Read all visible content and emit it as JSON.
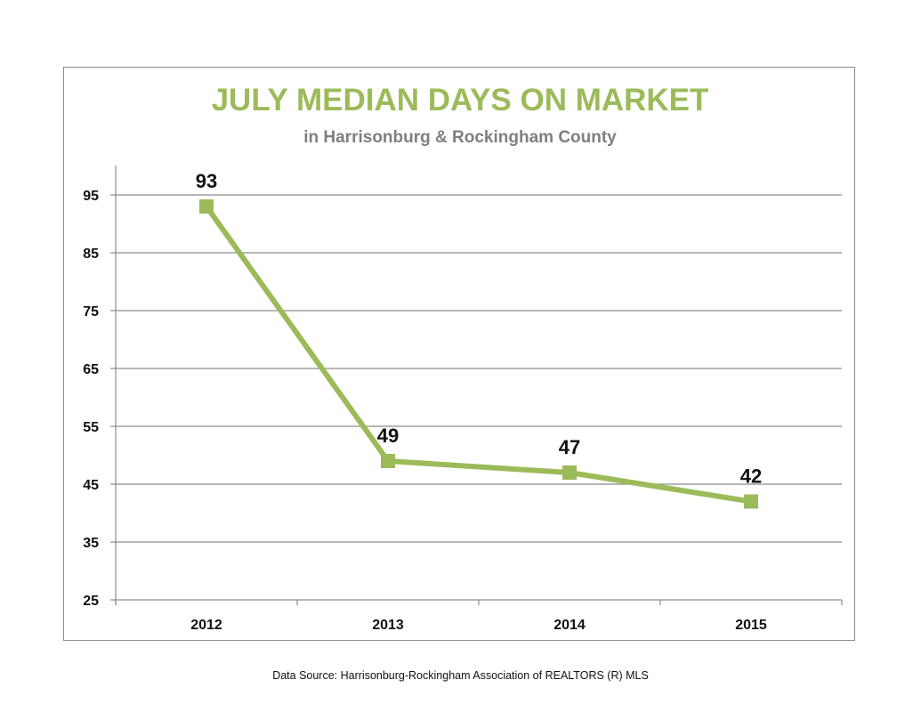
{
  "chart_data": {
    "type": "line",
    "title": "JULY MEDIAN DAYS ON MARKET",
    "subtitle": "in Harrisonburg  & Rockingham County",
    "categories": [
      "2012",
      "2013",
      "2014",
      "2015"
    ],
    "series": [
      {
        "values": [
          93,
          49,
          47,
          42
        ]
      }
    ],
    "data_labels": [
      "93",
      "49",
      "47",
      "42"
    ],
    "y_ticks": [
      25,
      35,
      45,
      55,
      65,
      75,
      85,
      95
    ],
    "ylim": [
      25,
      100
    ],
    "xlabel": "",
    "ylabel": "",
    "grid": true,
    "legend": "none",
    "colors": {
      "title": "#9bbb59",
      "line": "#9bbb59",
      "subtitle": "#7f7f7f",
      "grid": "#8c8c8c"
    }
  },
  "footer": {
    "source": "Data Source: Harrisonburg-Rockingham Association of REALTORS (R) MLS"
  }
}
